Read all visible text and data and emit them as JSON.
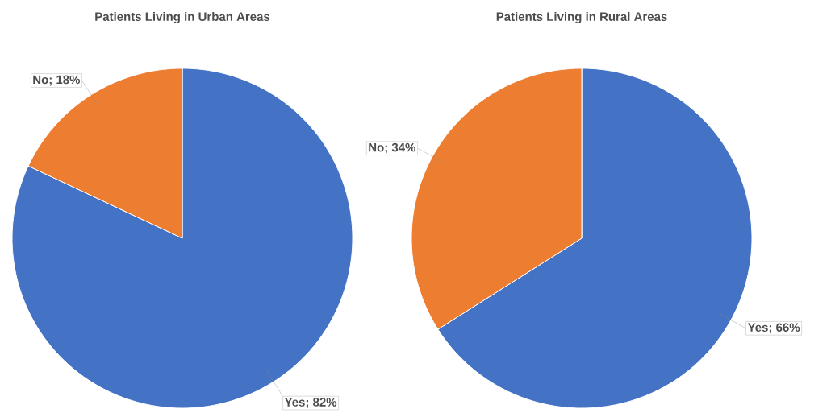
{
  "chart_data": [
    {
      "type": "pie",
      "title": "Patients Living in Urban Areas",
      "categories": [
        null,
        null
      ],
      "values": [
        82,
        18
      ],
      "colors": [
        "#4472c4",
        "#ed7d31"
      ],
      "value_labels": [
        "Yes; 82%",
        "No; 18%"
      ]
    },
    {
      "type": "pie",
      "title": "Patients Living in Rural Areas",
      "categories": [
        null,
        null
      ],
      "values": [
        66,
        34
      ],
      "colors": [
        "#4472c4",
        "#ed7d31"
      ],
      "value_labels": [
        "Yes; 66%",
        "No; 34%"
      ]
    }
  ]
}
